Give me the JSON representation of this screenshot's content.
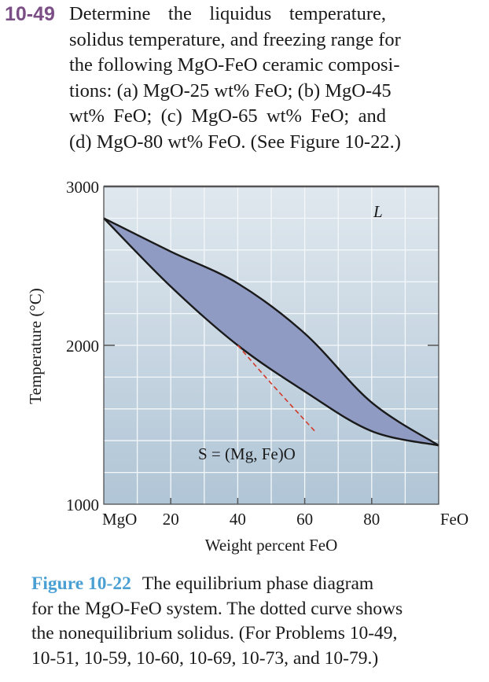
{
  "problem": {
    "number": "10-49",
    "lines": [
      "Determine the liquidus temperature,",
      "solidus temperature, and freezing range for",
      "the following MgO-FeO ceramic composi-",
      "tions: (a) MgO-25 wt% FeO; (b) MgO-45",
      "wt% FeO; (c) MgO-65 wt% FeO; and",
      "(d) MgO-80 wt% FeO. (See Figure 10-22.)"
    ]
  },
  "colors": {
    "problem_number": "#7b4f86",
    "figure_label": "#4a9fd3",
    "two_phase_fill": "#8f9bc2",
    "plot_bg_top": "#e0e8ee",
    "plot_bg_bottom": "#b0c5d6",
    "nonequilibrium_line": "#d23a2a"
  },
  "chart_data": {
    "type": "line",
    "xlabel": "Weight percent FeO",
    "ylabel": "Temperature (°C)",
    "xlim": [
      0,
      100
    ],
    "ylim": [
      1000,
      3000
    ],
    "x_tick_labels": [
      "MgO",
      "20",
      "40",
      "60",
      "80",
      "FeO"
    ],
    "x_ticks": [
      0,
      20,
      40,
      60,
      80,
      100
    ],
    "y_tick_labels": [
      "3000",
      "2000",
      "1000"
    ],
    "y_ticks": [
      3000,
      2000,
      1000
    ],
    "grid": true,
    "grid_x_step": 10,
    "grid_y_step": 200,
    "region_labels": {
      "liquid": "L",
      "solid": "S = (Mg, Fe)O"
    },
    "series": [
      {
        "role": "liquidus",
        "x": [
          0,
          20,
          40,
          60,
          80,
          100
        ],
        "y": [
          2800,
          2590,
          2390,
          2075,
          1640,
          1370
        ]
      },
      {
        "role": "solidus",
        "x": [
          0,
          20,
          40,
          60,
          80,
          100
        ],
        "y": [
          2800,
          2370,
          2000,
          1710,
          1460,
          1370
        ]
      },
      {
        "role": "nonequilibrium-solidus",
        "style": "dashed",
        "x": [
          40,
          50,
          63
        ],
        "y": [
          2000,
          1760,
          1460
        ]
      }
    ]
  },
  "caption": {
    "label": "Figure 10-22",
    "lines": [
      "The equilibrium phase diagram",
      "for the MgO-FeO system. The dotted curve shows",
      "the nonequilibrium solidus. (For Problems 10-49,",
      "10-51, 10-59, 10-60, 10-69, 10-73, and 10-79.)"
    ]
  }
}
